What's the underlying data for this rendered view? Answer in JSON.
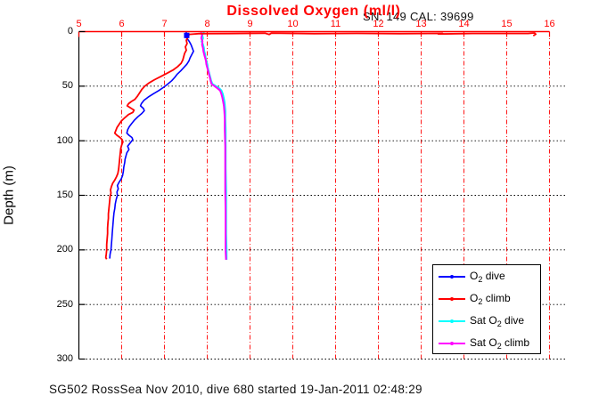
{
  "figure": {
    "title": "Dissolved Oxygen (ml/l)",
    "title_color": "#ff0000",
    "annotation": "SN: 149  CAL: 39699",
    "footer": "SG502 RossSea Nov 2010, dive 680 started 19-Jan-2011 02:48:29"
  },
  "chart_data": {
    "type": "line",
    "title": "Dissolved Oxygen (ml/l)",
    "xlabel": "",
    "ylabel": "Depth (m)",
    "xlim": [
      5,
      16
    ],
    "ylim": [
      0,
      300
    ],
    "y_inverted": true,
    "x_ticks": [
      5,
      6,
      7,
      8,
      9,
      10,
      11,
      12,
      13,
      14,
      15,
      16
    ],
    "y_ticks": [
      0,
      50,
      100,
      150,
      200,
      250,
      300
    ],
    "grid": {
      "vertical_color": "#ff0000",
      "horizontal_color": "#000000",
      "style": "dotted"
    },
    "axis_colors": {
      "top": "#ff0000",
      "left": "#000000"
    },
    "legend_position": "lower right",
    "series": [
      {
        "name": "Sat O2 dive",
        "color": "#00ffff",
        "width": 2.2,
        "points": [
          [
            7.93,
            0.5
          ],
          [
            7.88,
            3
          ],
          [
            7.9,
            6
          ],
          [
            7.87,
            9
          ],
          [
            7.9,
            12
          ],
          [
            7.92,
            15
          ],
          [
            7.93,
            18
          ],
          [
            7.95,
            21
          ],
          [
            7.96,
            24
          ],
          [
            7.98,
            27
          ],
          [
            8.0,
            30
          ],
          [
            8.01,
            33
          ],
          [
            8.03,
            36
          ],
          [
            8.05,
            39
          ],
          [
            8.07,
            42
          ],
          [
            8.09,
            45
          ],
          [
            8.12,
            48
          ],
          [
            8.2,
            50
          ],
          [
            8.28,
            52
          ],
          [
            8.33,
            54
          ],
          [
            8.36,
            57
          ],
          [
            8.38,
            60
          ],
          [
            8.4,
            64
          ],
          [
            8.41,
            68
          ],
          [
            8.42,
            73
          ],
          [
            8.42,
            80
          ],
          [
            8.43,
            90
          ],
          [
            8.43,
            105
          ],
          [
            8.43,
            125
          ],
          [
            8.44,
            145
          ],
          [
            8.44,
            165
          ],
          [
            8.44,
            185
          ],
          [
            8.45,
            200
          ],
          [
            8.45,
            209
          ]
        ]
      },
      {
        "name": "Sat O2 climb",
        "color": "#ff00ff",
        "width": 2.0,
        "points": [
          [
            7.85,
            0.5
          ],
          [
            7.88,
            3
          ],
          [
            7.86,
            6
          ],
          [
            7.89,
            9
          ],
          [
            7.88,
            12
          ],
          [
            7.9,
            15
          ],
          [
            7.91,
            18
          ],
          [
            7.93,
            21
          ],
          [
            7.95,
            24
          ],
          [
            7.97,
            27
          ],
          [
            7.98,
            30
          ],
          [
            8.0,
            33
          ],
          [
            8.02,
            36
          ],
          [
            8.04,
            39
          ],
          [
            8.06,
            42
          ],
          [
            8.08,
            45
          ],
          [
            8.1,
            48
          ],
          [
            8.17,
            50
          ],
          [
            8.24,
            52
          ],
          [
            8.3,
            54
          ],
          [
            8.33,
            57
          ],
          [
            8.35,
            60
          ],
          [
            8.37,
            64
          ],
          [
            8.39,
            68
          ],
          [
            8.4,
            73
          ],
          [
            8.41,
            80
          ],
          [
            8.41,
            90
          ],
          [
            8.42,
            105
          ],
          [
            8.42,
            125
          ],
          [
            8.42,
            145
          ],
          [
            8.43,
            165
          ],
          [
            8.43,
            185
          ],
          [
            8.43,
            200
          ],
          [
            8.44,
            209
          ]
        ]
      },
      {
        "name": "O2 dive",
        "color": "#0000ff",
        "width": 1.6,
        "points": [
          [
            7.5,
            0.5
          ],
          [
            7.55,
            3
          ],
          [
            7.52,
            6
          ],
          [
            7.58,
            9
          ],
          [
            7.62,
            12
          ],
          [
            7.65,
            15
          ],
          [
            7.68,
            18
          ],
          [
            7.64,
            21
          ],
          [
            7.6,
            24
          ],
          [
            7.57,
            27
          ],
          [
            7.52,
            30
          ],
          [
            7.45,
            33
          ],
          [
            7.38,
            36
          ],
          [
            7.3,
            39
          ],
          [
            7.24,
            42
          ],
          [
            7.17,
            45
          ],
          [
            7.08,
            48
          ],
          [
            6.98,
            51
          ],
          [
            6.87,
            54
          ],
          [
            6.74,
            57
          ],
          [
            6.62,
            60
          ],
          [
            6.52,
            63
          ],
          [
            6.46,
            66
          ],
          [
            6.44,
            68
          ],
          [
            6.51,
            70.5
          ],
          [
            6.53,
            72.5
          ],
          [
            6.47,
            75
          ],
          [
            6.38,
            78
          ],
          [
            6.3,
            81
          ],
          [
            6.24,
            84
          ],
          [
            6.18,
            87
          ],
          [
            6.14,
            90
          ],
          [
            6.12,
            93
          ],
          [
            6.17,
            95
          ],
          [
            6.24,
            97
          ],
          [
            6.26,
            99
          ],
          [
            6.2,
            102
          ],
          [
            6.14,
            105
          ],
          [
            6.17,
            108
          ],
          [
            6.12,
            111
          ],
          [
            6.1,
            114
          ],
          [
            6.08,
            117
          ],
          [
            6.07,
            120
          ],
          [
            6.05,
            124
          ],
          [
            6.04,
            128
          ],
          [
            6.02,
            132
          ],
          [
            5.99,
            135
          ],
          [
            5.94,
            138
          ],
          [
            5.9,
            141
          ],
          [
            5.92,
            144
          ],
          [
            5.89,
            147
          ],
          [
            5.9,
            150
          ],
          [
            5.87,
            154
          ],
          [
            5.85,
            158
          ],
          [
            5.84,
            162
          ],
          [
            5.82,
            166
          ],
          [
            5.81,
            170
          ],
          [
            5.8,
            175
          ],
          [
            5.79,
            180
          ],
          [
            5.78,
            185
          ],
          [
            5.77,
            190
          ],
          [
            5.76,
            195
          ],
          [
            5.75,
            200
          ],
          [
            5.73,
            204
          ],
          [
            5.72,
            208
          ]
        ]
      },
      {
        "name": "O2 climb",
        "color": "#ff0000",
        "width": 1.8,
        "points": [
          [
            15.62,
            3.8
          ],
          [
            15.68,
            2.4
          ],
          [
            15.65,
            1.2
          ],
          [
            15.5,
            1.7
          ],
          [
            14.2,
            1.7
          ],
          [
            13.4,
            2.2
          ],
          [
            13.5,
            1.6
          ],
          [
            12.5,
            1.9
          ],
          [
            11.5,
            1.6
          ],
          [
            10.5,
            1.9
          ],
          [
            9.5,
            1.4
          ],
          [
            9.45,
            2.6
          ],
          [
            9.35,
            1.5
          ],
          [
            8.5,
            1.8
          ],
          [
            7.8,
            1.9
          ],
          [
            7.58,
            2.5
          ],
          [
            7.55,
            5
          ],
          [
            7.51,
            8
          ],
          [
            7.53,
            11
          ],
          [
            7.49,
            14
          ],
          [
            7.51,
            17
          ],
          [
            7.47,
            20
          ],
          [
            7.45,
            23
          ],
          [
            7.43,
            26
          ],
          [
            7.39,
            29
          ],
          [
            7.31,
            32
          ],
          [
            7.21,
            35
          ],
          [
            7.07,
            38
          ],
          [
            6.92,
            41
          ],
          [
            6.77,
            44
          ],
          [
            6.64,
            47
          ],
          [
            6.54,
            50
          ],
          [
            6.47,
            53
          ],
          [
            6.42,
            56
          ],
          [
            6.37,
            59
          ],
          [
            6.31,
            62
          ],
          [
            6.23,
            64
          ],
          [
            6.16,
            66
          ],
          [
            6.13,
            68
          ],
          [
            6.21,
            70
          ],
          [
            6.29,
            72
          ],
          [
            6.26,
            74
          ],
          [
            6.16,
            76
          ],
          [
            6.07,
            79
          ],
          [
            5.99,
            82
          ],
          [
            5.94,
            85
          ],
          [
            5.89,
            88
          ],
          [
            5.86,
            91
          ],
          [
            5.84,
            93
          ],
          [
            5.89,
            95
          ],
          [
            5.96,
            97
          ],
          [
            6.01,
            99
          ],
          [
            6.03,
            101
          ],
          [
            6.0,
            104
          ],
          [
            5.98,
            107
          ],
          [
            5.97,
            110
          ],
          [
            5.96,
            114
          ],
          [
            5.95,
            118
          ],
          [
            5.94,
            122
          ],
          [
            5.93,
            126
          ],
          [
            5.91,
            130
          ],
          [
            5.88,
            133
          ],
          [
            5.84,
            136
          ],
          [
            5.79,
            139
          ],
          [
            5.76,
            142
          ],
          [
            5.74,
            145
          ],
          [
            5.75,
            148
          ],
          [
            5.73,
            151
          ],
          [
            5.72,
            155
          ],
          [
            5.71,
            159
          ],
          [
            5.7,
            163
          ],
          [
            5.69,
            167
          ],
          [
            5.69,
            171
          ],
          [
            5.68,
            175
          ],
          [
            5.67,
            180
          ],
          [
            5.67,
            185
          ],
          [
            5.66,
            190
          ],
          [
            5.65,
            195
          ],
          [
            5.65,
            200
          ],
          [
            5.64,
            204
          ],
          [
            5.63,
            207
          ],
          [
            5.65,
            208.5
          ]
        ]
      }
    ],
    "markers": [
      {
        "shape": "square",
        "color": "#0000ff",
        "x": 7.52,
        "depth": 3.5,
        "size": 6
      }
    ]
  },
  "legend": {
    "items": [
      {
        "pre": "O",
        "sub": "2",
        "post": " dive",
        "color": "#0000ff"
      },
      {
        "pre": "O",
        "sub": "2",
        "post": " climb",
        "color": "#ff0000"
      },
      {
        "pre": "Sat O",
        "sub": "2",
        "post": " dive",
        "color": "#00ffff"
      },
      {
        "pre": "Sat O",
        "sub": "2",
        "post": " climb",
        "color": "#ff00ff"
      }
    ]
  }
}
